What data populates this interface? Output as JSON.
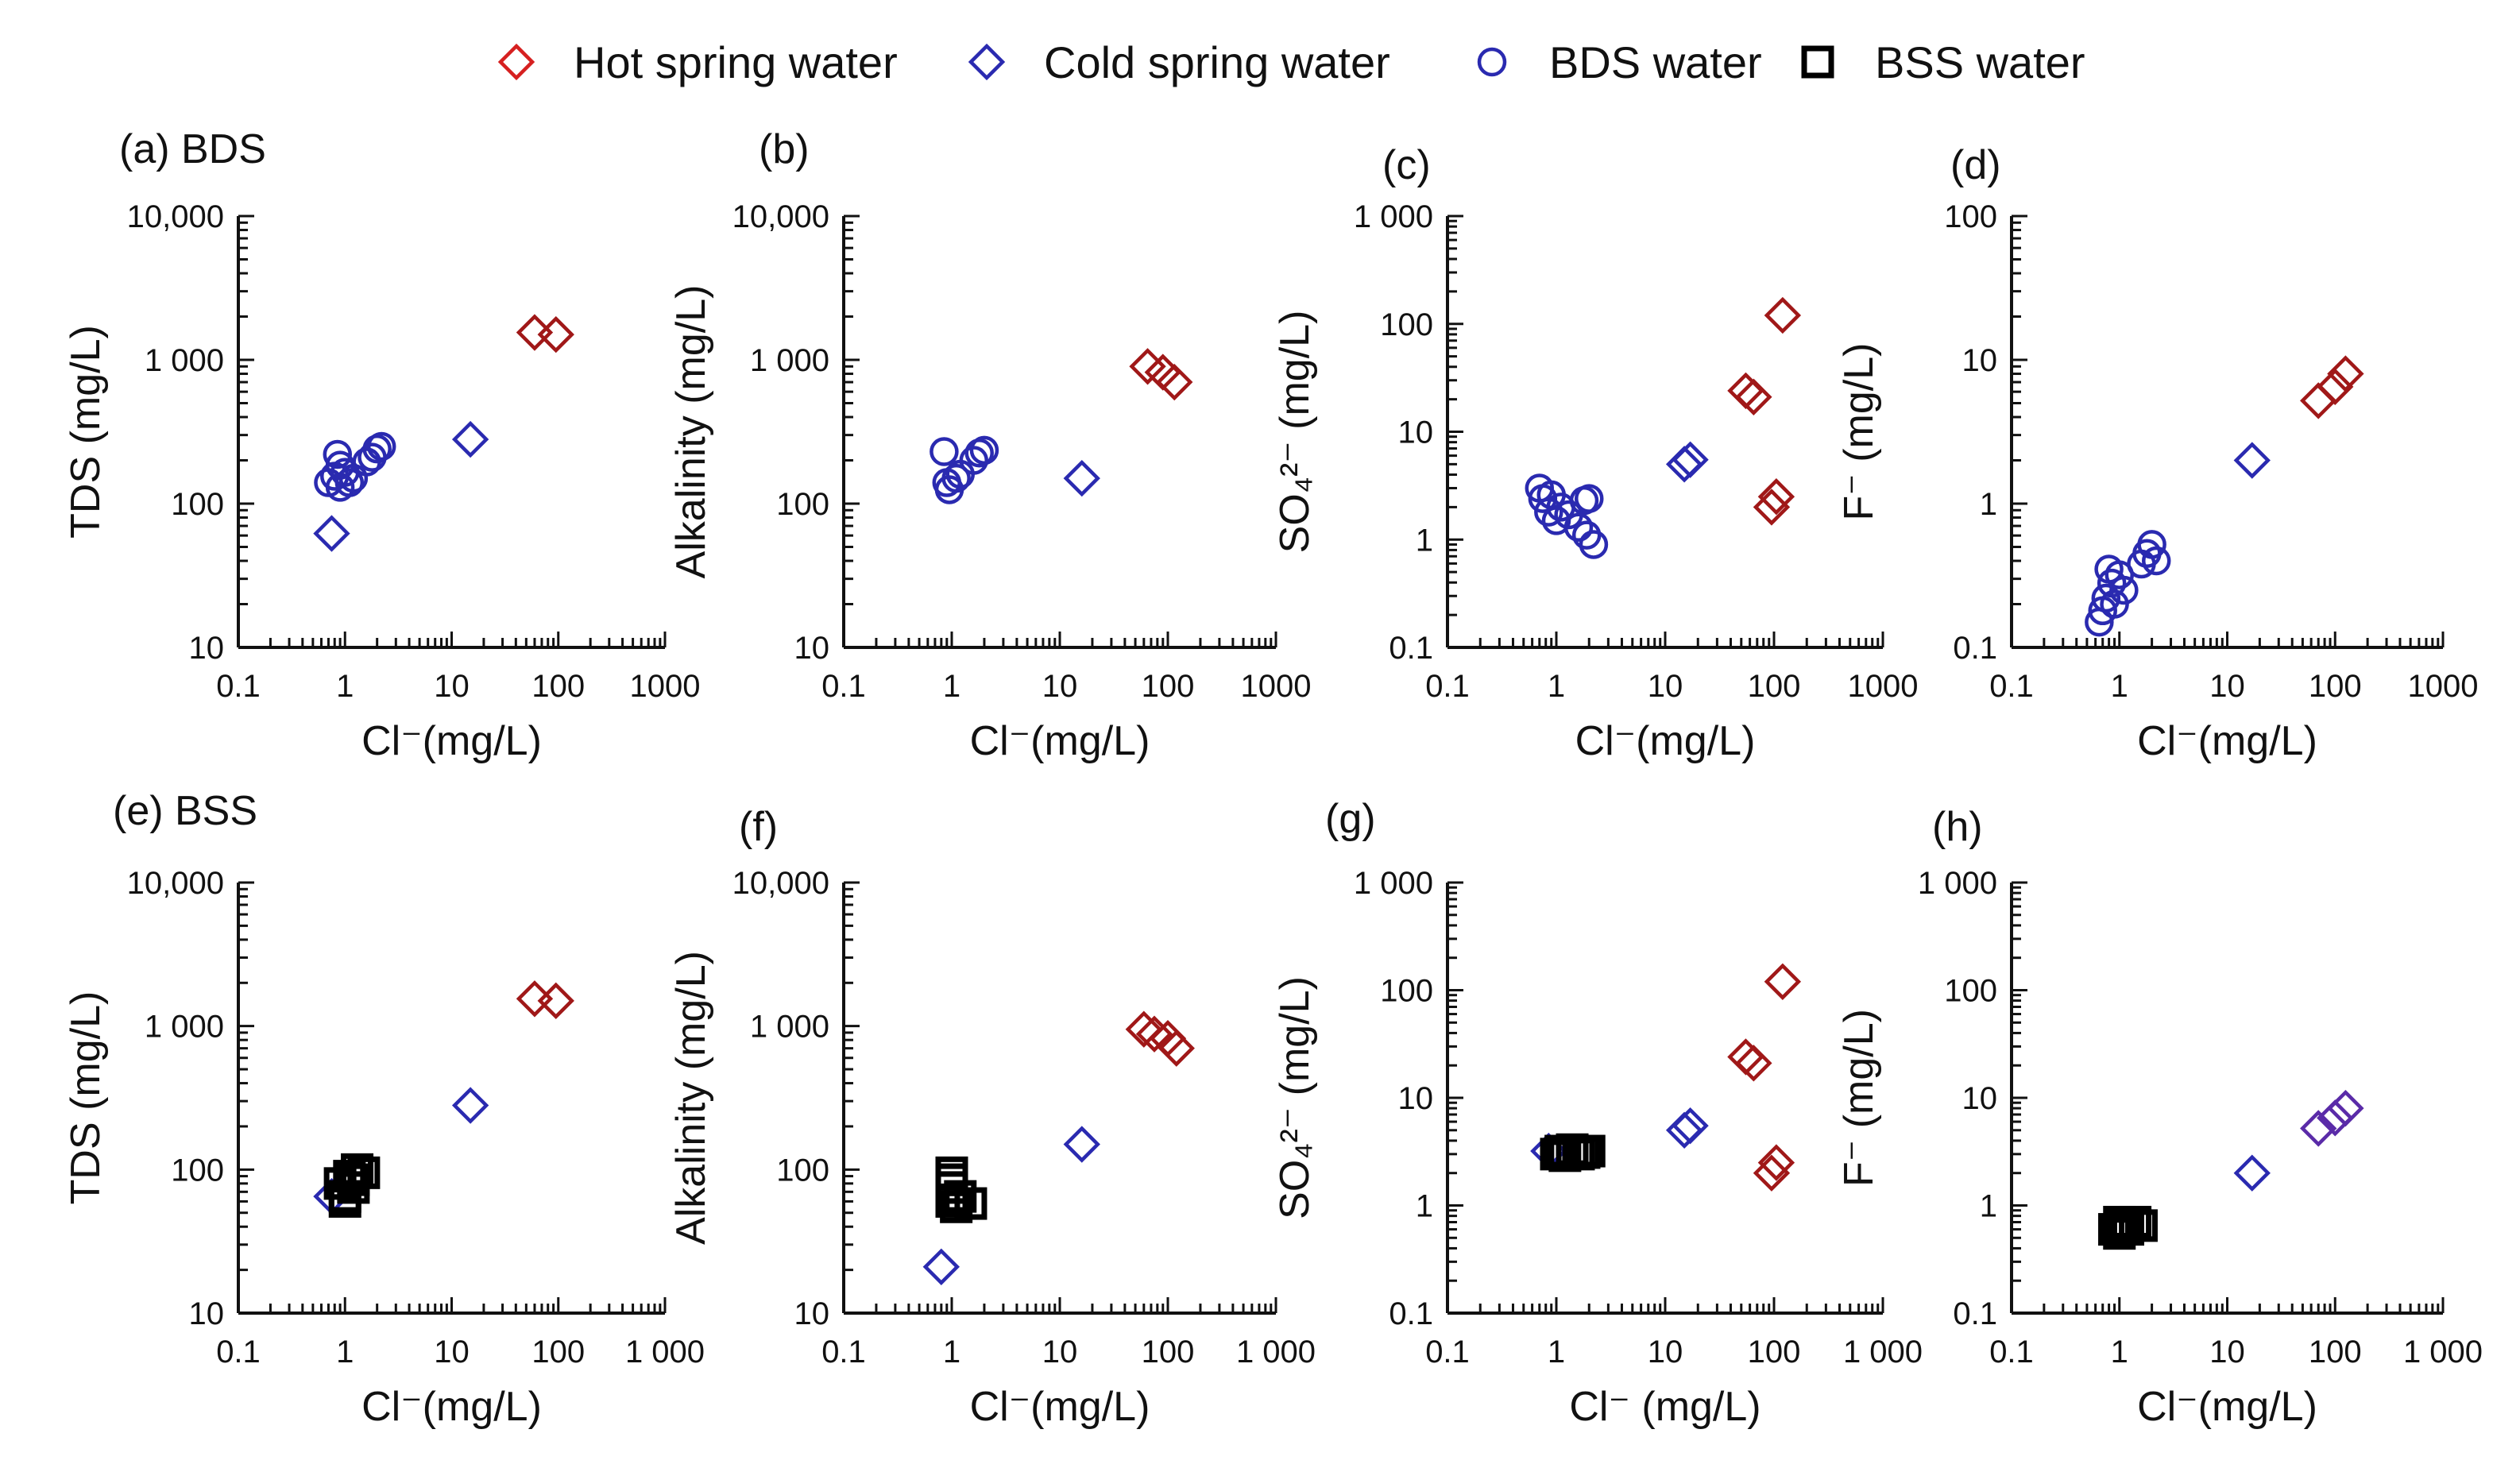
{
  "legend": {
    "items": [
      {
        "label": "Hot spring water",
        "marker": "diamond",
        "color": "#d62020"
      },
      {
        "label": "Cold spring water",
        "marker": "diamond",
        "color": "#2a2ab0"
      },
      {
        "label": "BDS water",
        "marker": "circle",
        "color": "#2a2ab0"
      },
      {
        "label": "BSS water",
        "marker": "square",
        "color": "#000000"
      }
    ]
  },
  "chart_data": [
    {
      "panel": "(a)",
      "title": "BDS",
      "type": "scatter",
      "xlabel": "Cl⁻(mg/L)",
      "ylabel": "TDS (mg/L)",
      "xscale": "log",
      "yscale": "log",
      "xlim": [
        0.1,
        1000
      ],
      "ylim": [
        10,
        10000
      ],
      "xticks": [
        "0.1",
        "1",
        "10",
        "100",
        "1000"
      ],
      "yticks": [
        "10",
        "100",
        "1 000",
        "10,000"
      ],
      "series": [
        {
          "marker": "diamond",
          "color": "#a01818",
          "points": [
            [
              60,
              1550
            ],
            [
              95,
              1500
            ]
          ]
        },
        {
          "marker": "diamond",
          "color": "#2a2ab0",
          "points": [
            [
              0.75,
              62
            ],
            [
              15,
              280
            ]
          ]
        },
        {
          "marker": "circle",
          "color": "#2a2ab0",
          "points": [
            [
              0.7,
              140
            ],
            [
              0.8,
              155
            ],
            [
              0.85,
              220
            ],
            [
              0.9,
              130
            ],
            [
              1.0,
              165
            ],
            [
              1.1,
              140
            ],
            [
              1.2,
              150
            ],
            [
              1.8,
              210
            ],
            [
              2.0,
              240
            ],
            [
              2.2,
              250
            ],
            [
              1.6,
              195
            ],
            [
              0.9,
              185
            ]
          ]
        }
      ]
    },
    {
      "panel": "(b)",
      "title": "",
      "type": "scatter",
      "xlabel": "Cl⁻(mg/L)",
      "ylabel": "Alkalinity (mg/L)",
      "xscale": "log",
      "yscale": "log",
      "xlim": [
        0.1,
        1000
      ],
      "ylim": [
        10,
        10000
      ],
      "xticks": [
        "0.1",
        "1",
        "10",
        "100",
        "1000"
      ],
      "yticks": [
        "10",
        "100",
        "1 000",
        "10,000"
      ],
      "series": [
        {
          "marker": "diamond",
          "color": "#a01818",
          "points": [
            [
              65,
              900
            ],
            [
              90,
              820
            ],
            [
              115,
              700
            ]
          ]
        },
        {
          "marker": "diamond",
          "color": "#2a2ab0",
          "points": [
            [
              16,
              150
            ]
          ]
        },
        {
          "marker": "circle",
          "color": "#2a2ab0",
          "points": [
            [
              0.85,
              230
            ],
            [
              0.9,
              140
            ],
            [
              0.95,
              125
            ],
            [
              1.1,
              150
            ],
            [
              1.6,
              200
            ],
            [
              1.8,
              225
            ],
            [
              2.0,
              235
            ],
            [
              1.2,
              160
            ]
          ]
        }
      ]
    },
    {
      "panel": "(c)",
      "title": "",
      "type": "scatter",
      "xlabel": "Cl⁻(mg/L)",
      "ylabel": "SO₄²⁻ (mg/L)",
      "xscale": "log",
      "yscale": "log",
      "xlim": [
        0.1,
        1000
      ],
      "ylim": [
        0.1,
        1000
      ],
      "xticks": [
        "0.1",
        "1",
        "10",
        "100",
        "1000"
      ],
      "yticks": [
        "0.1",
        "1",
        "10",
        "100",
        "1 000"
      ],
      "series": [
        {
          "marker": "diamond",
          "color": "#a01818",
          "points": [
            [
              55,
              24
            ],
            [
              65,
              21
            ],
            [
              95,
              2
            ],
            [
              105,
              2.5
            ],
            [
              120,
              120
            ]
          ]
        },
        {
          "marker": "diamond",
          "color": "#2a2ab0",
          "points": [
            [
              15,
              5
            ],
            [
              17,
              5.5
            ]
          ]
        },
        {
          "marker": "circle",
          "color": "#2a2ab0",
          "points": [
            [
              0.7,
              3
            ],
            [
              0.75,
              2.4
            ],
            [
              0.85,
              1.8
            ],
            [
              0.9,
              2.6
            ],
            [
              1.0,
              1.5
            ],
            [
              1.1,
              2
            ],
            [
              1.3,
              1.7
            ],
            [
              1.8,
              2.3
            ],
            [
              2.0,
              2.4
            ],
            [
              1.9,
              1.1
            ],
            [
              2.2,
              0.9
            ],
            [
              1.6,
              1.3
            ]
          ]
        }
      ]
    },
    {
      "panel": "(d)",
      "title": "",
      "type": "scatter",
      "xlabel": "Cl⁻(mg/L)",
      "ylabel": "F⁻ (mg/L)",
      "xscale": "log",
      "yscale": "log",
      "xlim": [
        0.1,
        1000
      ],
      "ylim": [
        0.1,
        100
      ],
      "xticks": [
        "0.1",
        "1",
        "10",
        "100",
        "1000"
      ],
      "yticks": [
        "0.1",
        "1",
        "10",
        "100"
      ],
      "series": [
        {
          "marker": "diamond",
          "color": "#a01818",
          "points": [
            [
              70,
              5.2
            ],
            [
              100,
              6.5
            ],
            [
              125,
              8
            ]
          ]
        },
        {
          "marker": "diamond",
          "color": "#2a2ab0",
          "points": [
            [
              17,
              2
            ]
          ]
        },
        {
          "marker": "circle",
          "color": "#2a2ab0",
          "points": [
            [
              0.65,
              0.15
            ],
            [
              0.7,
              0.18
            ],
            [
              0.75,
              0.22
            ],
            [
              0.8,
              0.35
            ],
            [
              0.85,
              0.28
            ],
            [
              0.9,
              0.2
            ],
            [
              1.0,
              0.32
            ],
            [
              1.1,
              0.25
            ],
            [
              1.6,
              0.38
            ],
            [
              1.8,
              0.45
            ],
            [
              2.0,
              0.52
            ],
            [
              2.2,
              0.4
            ]
          ]
        }
      ]
    },
    {
      "panel": "(e)",
      "title": "BSS",
      "type": "scatter",
      "xlabel": "Cl⁻(mg/L)",
      "ylabel": "TDS (mg/L)",
      "xscale": "log",
      "yscale": "log",
      "xlim": [
        0.1,
        1000
      ],
      "ylim": [
        10,
        10000
      ],
      "xticks": [
        "0.1",
        "1",
        "10",
        "100",
        "1 000"
      ],
      "yticks": [
        "10",
        "100",
        "1 000",
        "10,000"
      ],
      "series": [
        {
          "marker": "diamond",
          "color": "#a01818",
          "points": [
            [
              60,
              1550
            ],
            [
              95,
              1500
            ]
          ]
        },
        {
          "marker": "diamond",
          "color": "#2a2ab0",
          "points": [
            [
              0.75,
              65
            ],
            [
              15,
              280
            ]
          ]
        },
        {
          "marker": "square",
          "color": "#000000",
          "points": [
            [
              0.9,
              80
            ],
            [
              1.0,
              65
            ],
            [
              1.1,
              90
            ],
            [
              1.2,
              75
            ],
            [
              1.3,
              100
            ],
            [
              1.5,
              95
            ],
            [
              1.0,
              60
            ],
            [
              1.2,
              85
            ]
          ]
        }
      ]
    },
    {
      "panel": "(f)",
      "title": "",
      "type": "scatter",
      "xlabel": "Cl⁻(mg/L)",
      "ylabel": "Alkalinity (mg/L)",
      "xscale": "log",
      "yscale": "log",
      "xlim": [
        0.1,
        1000
      ],
      "ylim": [
        10,
        10000
      ],
      "xticks": [
        "0.1",
        "1",
        "10",
        "100",
        "1 000"
      ],
      "yticks": [
        "10",
        "100",
        "1 000",
        "10,000"
      ],
      "series": [
        {
          "marker": "diamond",
          "color": "#a01818",
          "points": [
            [
              60,
              950
            ],
            [
              75,
              880
            ],
            [
              100,
              820
            ],
            [
              120,
              700
            ]
          ]
        },
        {
          "marker": "diamond",
          "color": "#2a2ab0",
          "points": [
            [
              0.8,
              21
            ],
            [
              16,
              150
            ]
          ]
        },
        {
          "marker": "square",
          "color": "#000000",
          "points": [
            [
              1.0,
              95
            ],
            [
              1.0,
              75
            ],
            [
              1.0,
              60
            ],
            [
              1.1,
              55
            ],
            [
              1.2,
              65
            ],
            [
              1.5,
              58
            ],
            [
              1.0,
              85
            ]
          ]
        }
      ]
    },
    {
      "panel": "(g)",
      "title": "",
      "type": "scatter",
      "xlabel": "Cl⁻ (mg/L)",
      "ylabel": "SO₄²⁻ (mg/L)",
      "xscale": "log",
      "yscale": "log",
      "xlim": [
        0.1,
        1000
      ],
      "ylim": [
        0.1,
        1000
      ],
      "xticks": [
        "0.1",
        "1",
        "10",
        "100",
        "1 000"
      ],
      "yticks": [
        "0.1",
        "1",
        "10",
        "100",
        "1 000"
      ],
      "series": [
        {
          "marker": "diamond",
          "color": "#a01818",
          "points": [
            [
              55,
              24
            ],
            [
              65,
              21
            ],
            [
              95,
              2
            ],
            [
              105,
              2.5
            ],
            [
              120,
              120
            ]
          ]
        },
        {
          "marker": "diamond",
          "color": "#2a2ab0",
          "points": [
            [
              0.85,
              3.2
            ],
            [
              15,
              5
            ],
            [
              17,
              5.5
            ]
          ]
        },
        {
          "marker": "square",
          "color": "#000000",
          "points": [
            [
              1.0,
              3
            ],
            [
              1.1,
              3.2
            ],
            [
              1.2,
              2.9
            ],
            [
              1.4,
              3.3
            ],
            [
              1.6,
              3
            ],
            [
              1.8,
              3.1
            ],
            [
              2.0,
              3.2
            ]
          ]
        }
      ]
    },
    {
      "panel": "(h)",
      "title": "",
      "type": "scatter",
      "xlabel": "Cl⁻(mg/L)",
      "ylabel": "F⁻ (mg/L)",
      "xscale": "log",
      "yscale": "log",
      "xlim": [
        0.1,
        1000
      ],
      "ylim": [
        0.1,
        1000
      ],
      "xticks": [
        "0.1",
        "1",
        "10",
        "100",
        "1 000"
      ],
      "yticks": [
        "0.1",
        "1",
        "10",
        "100",
        "1 000"
      ],
      "series": [
        {
          "marker": "diamond",
          "color": "#5a2ba8",
          "points": [
            [
              70,
              5.2
            ],
            [
              100,
              6.5
            ],
            [
              125,
              8
            ]
          ]
        },
        {
          "marker": "diamond",
          "color": "#2a2ab0",
          "points": [
            [
              17,
              2
            ]
          ]
        },
        {
          "marker": "square",
          "color": "#000000",
          "points": [
            [
              0.9,
              0.6
            ],
            [
              1.0,
              0.55
            ],
            [
              1.0,
              0.7
            ],
            [
              1.1,
              0.65
            ],
            [
              1.2,
              0.6
            ],
            [
              1.4,
              0.7
            ],
            [
              1.6,
              0.65
            ]
          ]
        }
      ]
    }
  ]
}
